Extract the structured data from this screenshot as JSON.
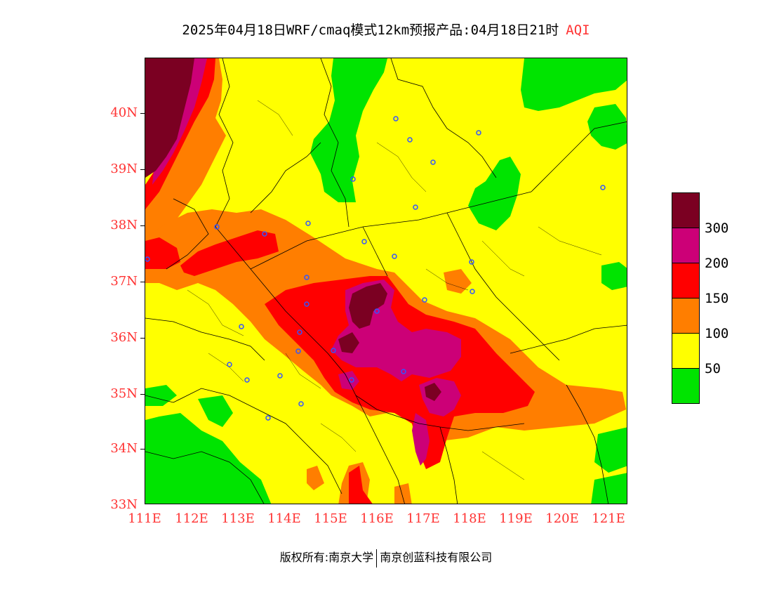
{
  "title": {
    "main": "2025年04月18日WRF/cmaq模式12km预报产品:04月18日21时",
    "variable": "AQI"
  },
  "axes": {
    "lat_labels": [
      "40N",
      "39N",
      "38N",
      "37N",
      "36N",
      "35N",
      "34N",
      "33N"
    ],
    "lon_labels": [
      "111E",
      "112E",
      "113E",
      "114E",
      "115E",
      "116E",
      "117E",
      "118E",
      "119E",
      "120E",
      "121E"
    ]
  },
  "legend": {
    "labels": [
      "300",
      "200",
      "150",
      "100",
      "50"
    ],
    "colors": {
      "c300": "#7b0022",
      "c200": "#cc0077",
      "c150": "#ff0000",
      "c100": "#ff7e00",
      "c50": "#ffff00",
      "c0": "#00e400"
    }
  },
  "footer": {
    "left": "版权所有:南京大学",
    "right": "南京创蓝科技有限公司"
  }
}
